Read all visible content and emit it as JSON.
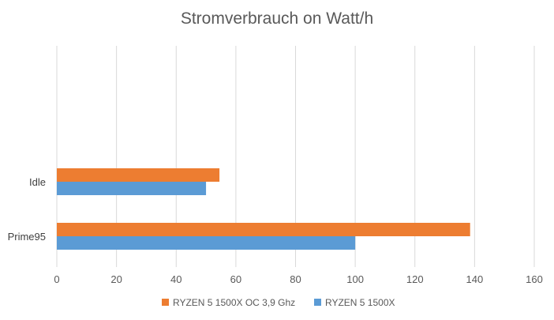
{
  "chart_data": {
    "type": "bar",
    "orientation": "horizontal",
    "title": "Stromverbrauch on Watt/h",
    "categories": [
      "Idle",
      "Prime95"
    ],
    "series": [
      {
        "name": "RYZEN 5 1500X OC 3,9 Ghz",
        "color": "#ED7D31",
        "values": [
          54.5,
          138.5
        ]
      },
      {
        "name": "RYZEN 5 1500X",
        "color": "#5B9BD5",
        "values": [
          50,
          100
        ]
      }
    ],
    "xlim": [
      0,
      160
    ],
    "xticks": [
      0,
      20,
      40,
      60,
      80,
      100,
      120,
      140,
      160
    ],
    "grid": true,
    "legend_position": "bottom",
    "xlabel": "",
    "ylabel": ""
  }
}
